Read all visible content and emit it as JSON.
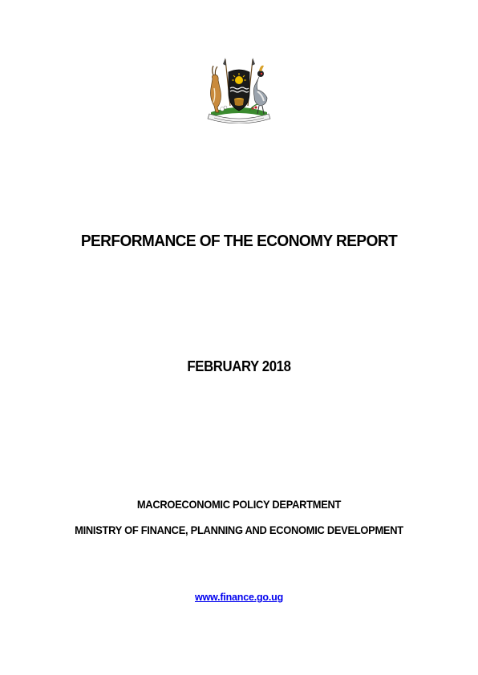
{
  "document": {
    "title": "PERFORMANCE OF THE ECONOMY REPORT",
    "date": "FEBRUARY 2018",
    "department": "MACROECONOMIC POLICY DEPARTMENT",
    "ministry": "MINISTRY OF FINANCE, PLANNING AND ECONOMIC DEVELOPMENT",
    "website": "www.finance.go.ug",
    "emblem": {
      "icon": "uganda-coat-of-arms-icon",
      "motto": "FOR GOD AND MY COUNTRY"
    },
    "colors": {
      "text": "#000000",
      "link": "#0000ee"
    }
  }
}
